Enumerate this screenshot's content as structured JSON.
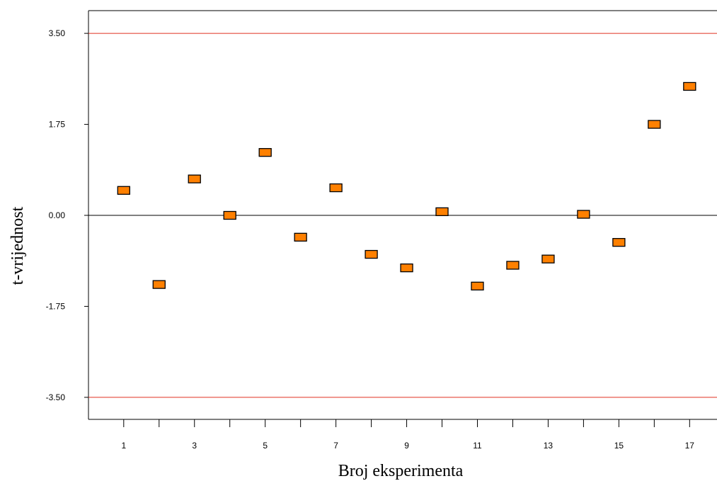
{
  "chart_data": {
    "type": "scatter",
    "title": "",
    "xlabel": "Broj eksperimenta",
    "ylabel": "t-vrijednost",
    "xlim": [
      0,
      17.8
    ],
    "ylim": [
      -4.2,
      4.2
    ],
    "x_ticks": [
      1,
      3,
      5,
      7,
      9,
      11,
      13,
      15,
      17
    ],
    "x_tick_labels": [
      "1",
      "3",
      "5",
      "7",
      "9",
      "11",
      "13",
      "15",
      "17"
    ],
    "x_minor_ticks": [
      2,
      4,
      6,
      8,
      10,
      12,
      14,
      16
    ],
    "y_ticks": [
      3.5,
      1.75,
      0,
      -1.75,
      -3.5
    ],
    "y_tick_labels": [
      "3.50",
      "1.75",
      "0.00",
      "-1.75",
      "-3.50"
    ],
    "reference_lines": [
      {
        "y": 3.5,
        "color": "#e03020"
      },
      {
        "y": 0,
        "color": "#000000"
      },
      {
        "y": -3.5,
        "color": "#e03020"
      }
    ],
    "marker_color": "#ff8000",
    "marker_edge_color": "#000000",
    "grid": false,
    "points": [
      {
        "x": 1,
        "y": 0.48
      },
      {
        "x": 2,
        "y": -1.33
      },
      {
        "x": 3,
        "y": 0.7
      },
      {
        "x": 4,
        "y": 0.0
      },
      {
        "x": 5,
        "y": 1.21
      },
      {
        "x": 6,
        "y": -0.42
      },
      {
        "x": 7,
        "y": 0.53
      },
      {
        "x": 8,
        "y": -0.75
      },
      {
        "x": 9,
        "y": -1.01
      },
      {
        "x": 10,
        "y": 0.07
      },
      {
        "x": 11,
        "y": -1.36
      },
      {
        "x": 12,
        "y": -0.96
      },
      {
        "x": 13,
        "y": -0.84
      },
      {
        "x": 14,
        "y": 0.02
      },
      {
        "x": 15,
        "y": -0.52
      },
      {
        "x": 16,
        "y": 1.75
      },
      {
        "x": 17,
        "y": 2.48
      }
    ]
  }
}
